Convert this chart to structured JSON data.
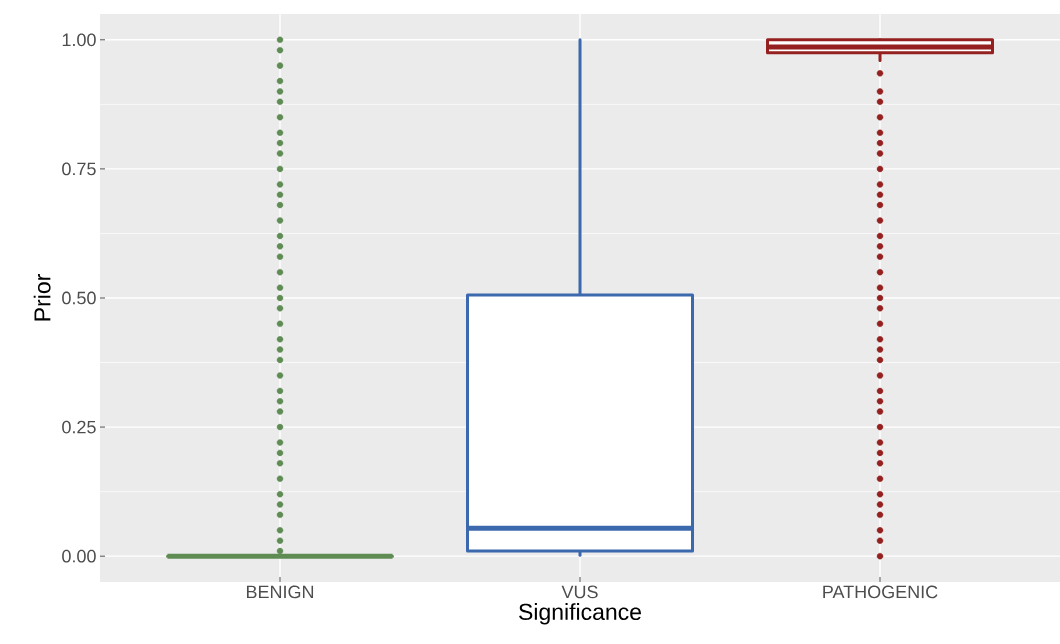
{
  "chart_data": {
    "type": "box",
    "xlabel": "Significance",
    "ylabel": "Prior",
    "categories": [
      "BENIGN",
      "VUS",
      "PATHOGENIC"
    ],
    "colors": [
      "#5e8c53",
      "#3c69ad",
      "#94211f"
    ],
    "boxes": [
      {
        "low": 0,
        "q1": 0,
        "median": 0,
        "q3": 0,
        "high": 0,
        "outliers": [
          0.01,
          0.03,
          0.05,
          0.08,
          0.1,
          0.12,
          0.15,
          0.18,
          0.2,
          0.22,
          0.25,
          0.28,
          0.3,
          0.32,
          0.35,
          0.38,
          0.4,
          0.42,
          0.45,
          0.48,
          0.5,
          0.52,
          0.55,
          0.58,
          0.6,
          0.62,
          0.65,
          0.68,
          0.7,
          0.72,
          0.75,
          0.78,
          0.8,
          0.82,
          0.85,
          0.88,
          0.9,
          0.92,
          0.95,
          0.98,
          1.0
        ]
      },
      {
        "low": 0.002,
        "q1": 0.01,
        "median": 0.054,
        "q3": 0.506,
        "high": 1.0
      },
      {
        "low": 0.96,
        "q1": 0.975,
        "median": 0.986,
        "q3": 1.0,
        "high": 1.0,
        "outliers": [
          0.0,
          0.03,
          0.05,
          0.08,
          0.1,
          0.12,
          0.15,
          0.18,
          0.2,
          0.22,
          0.25,
          0.28,
          0.3,
          0.32,
          0.35,
          0.38,
          0.4,
          0.42,
          0.45,
          0.48,
          0.5,
          0.52,
          0.55,
          0.58,
          0.6,
          0.62,
          0.65,
          0.68,
          0.7,
          0.72,
          0.75,
          0.78,
          0.8,
          0.82,
          0.85,
          0.88,
          0.9,
          0.935
        ]
      }
    ],
    "ylim": [
      -0.05,
      1.05
    ],
    "yticks": [
      {
        "value": 0,
        "label": "0.00"
      },
      {
        "value": 0.25,
        "label": "0.25"
      },
      {
        "value": 0.5,
        "label": "0.50"
      },
      {
        "value": 0.75,
        "label": "0.75"
      },
      {
        "value": 1,
        "label": "1.00"
      }
    ],
    "grid": true
  }
}
